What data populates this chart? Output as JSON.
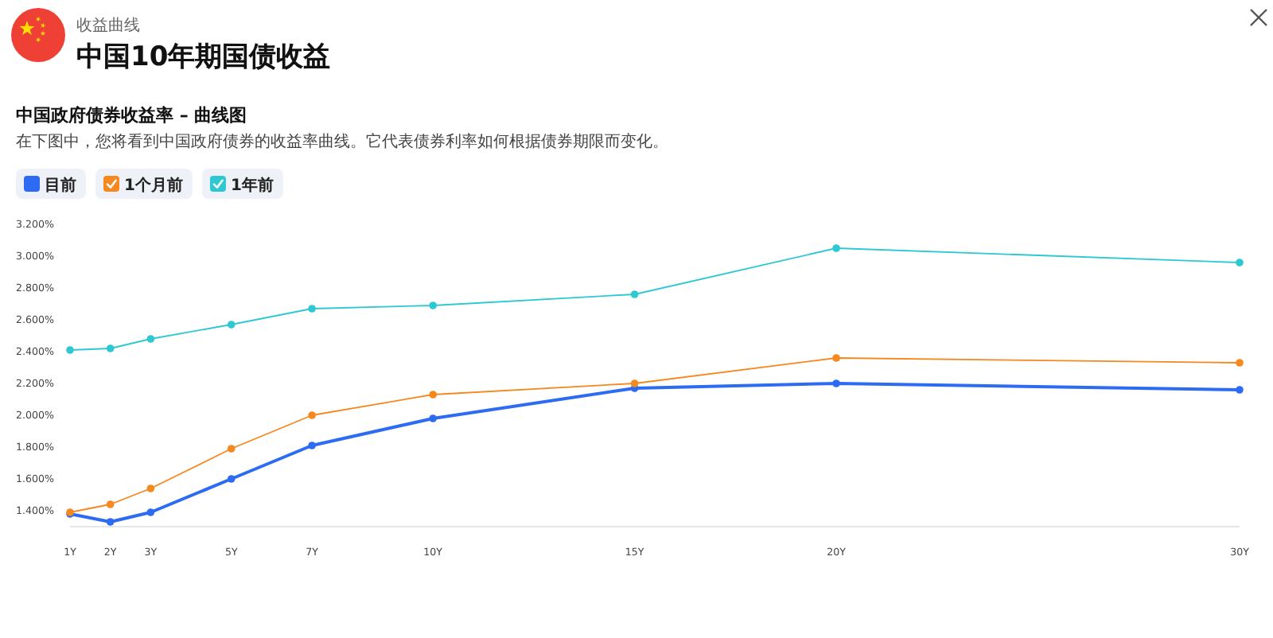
{
  "chart_data": {
    "type": "line",
    "title": "中国10年期国债收益",
    "subtitle": "中国政府债券收益率 – 曲线图",
    "annotations": [
      "收益曲线",
      "在下图中，您将看到中国政府债券的收益率曲线。它代表债券利率如何根据债券期限而变化。"
    ],
    "x": [
      1,
      2,
      3,
      5,
      7,
      10,
      15,
      20,
      30
    ],
    "xlim": [
      1,
      30
    ],
    "xticks": [
      {
        "value": 1,
        "label": "1Y"
      },
      {
        "value": 2,
        "label": "2Y"
      },
      {
        "value": 3,
        "label": "3Y"
      },
      {
        "value": 5,
        "label": "5Y"
      },
      {
        "value": 7,
        "label": "7Y"
      },
      {
        "value": 10,
        "label": "10Y"
      },
      {
        "value": 15,
        "label": "15Y"
      },
      {
        "value": 20,
        "label": "20Y"
      },
      {
        "value": 30,
        "label": "30Y"
      }
    ],
    "ylim": [
      1.3,
      3.2
    ],
    "yticks": [
      {
        "value": 1.4,
        "label": "1.400%"
      },
      {
        "value": 1.6,
        "label": "1.600%"
      },
      {
        "value": 1.8,
        "label": "1.800%"
      },
      {
        "value": 2.0,
        "label": "2.000%"
      },
      {
        "value": 2.2,
        "label": "2.200%"
      },
      {
        "value": 2.4,
        "label": "2.400%"
      },
      {
        "value": 2.6,
        "label": "2.600%"
      },
      {
        "value": 2.8,
        "label": "2.800%"
      },
      {
        "value": 3.0,
        "label": "3.000%"
      },
      {
        "value": 3.2,
        "label": "3.200%"
      }
    ],
    "marker": "circle",
    "legend": "top left",
    "series": [
      {
        "name": "目前",
        "color": "#2d6cf2",
        "values": [
          1.38,
          1.33,
          1.39,
          1.6,
          1.81,
          1.98,
          2.17,
          2.2,
          2.16
        ]
      },
      {
        "name": "1个月前",
        "color": "#f5881f",
        "values": [
          1.39,
          1.44,
          1.54,
          1.79,
          2.0,
          2.13,
          2.2,
          2.36,
          2.33
        ]
      },
      {
        "name": "1年前",
        "color": "#2ec8d3",
        "values": [
          2.41,
          2.42,
          2.48,
          2.57,
          2.67,
          2.69,
          2.76,
          3.05,
          2.96
        ]
      }
    ]
  }
}
